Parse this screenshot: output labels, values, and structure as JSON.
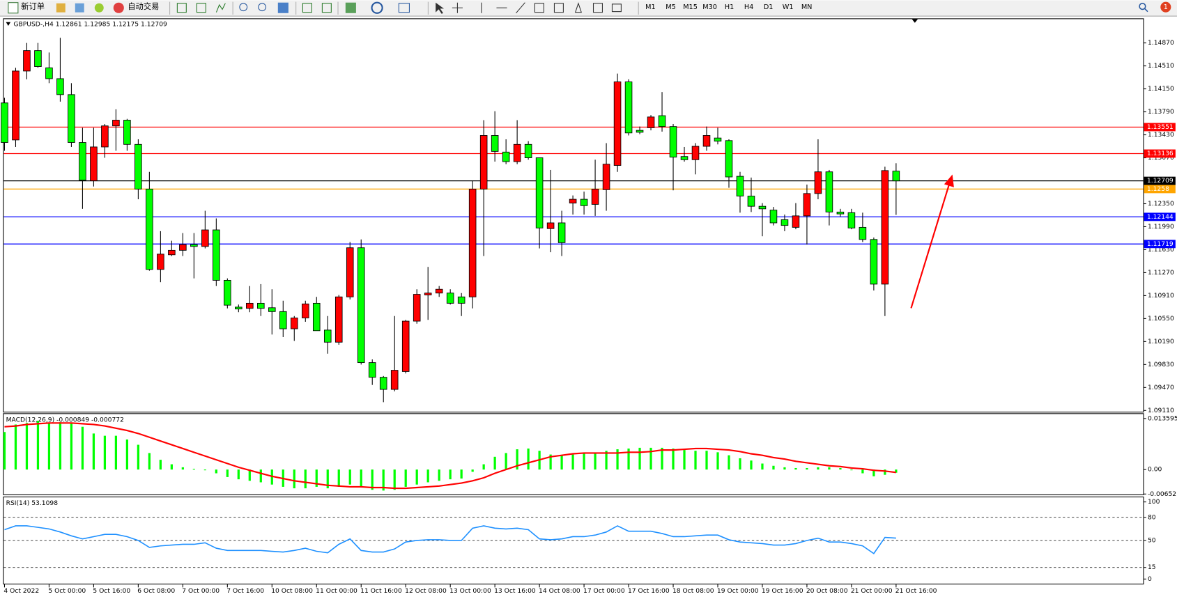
{
  "toolbar": {
    "new_order": "新订单",
    "auto_trade": "自动交易",
    "timeframes": [
      "M1",
      "M5",
      "M15",
      "M30",
      "H1",
      "H4",
      "D1",
      "W1",
      "MN"
    ],
    "badge": "1"
  },
  "chart_data": [
    {
      "type": "candlestick",
      "title": "GBPUSD-,H4  1.12861 1.12985 1.12175 1.12709",
      "categories": [
        "4 Oct 2022",
        null,
        null,
        null,
        "5 Oct 00:00",
        null,
        null,
        null,
        "5 Oct 16:00",
        null,
        null,
        null,
        "6 Oct 08:00",
        null,
        null,
        null,
        "7 Oct 00:00",
        null,
        null,
        null,
        "7 Oct 16:00",
        null,
        null,
        null,
        "10 Oct 08:00",
        null,
        null,
        null,
        "11 Oct 00:00",
        null,
        null,
        null,
        "11 Oct 16:00",
        null,
        null,
        null,
        "12 Oct 08:00",
        null,
        null,
        null,
        "13 Oct 00:00",
        null,
        null,
        null,
        "13 Oct 16:00",
        null,
        null,
        null,
        "14 Oct 08:00",
        null,
        null,
        null,
        "17 Oct 00:00",
        null,
        null,
        null,
        "17 Oct 16:00",
        null,
        null,
        null,
        "18 Oct 08:00",
        null,
        null,
        null,
        "19 Oct 00:00",
        null,
        null,
        null,
        "19 Oct 16:00",
        null,
        null,
        null,
        "20 Oct 08:00",
        null,
        null,
        null,
        "21 Oct 00:00",
        null,
        null,
        null,
        "21 Oct 16:00"
      ],
      "open": [
        1.1393,
        1.1335,
        1.1443,
        1.1475,
        1.1448,
        1.1431,
        1.1406,
        1.1331,
        1.1271,
        1.1324,
        1.1357,
        1.1366,
        1.1328,
        1.1258,
        1.1132,
        1.1155,
        1.1162,
        1.1171,
        1.1168,
        1.1194,
        1.1115,
        1.1073,
        1.1071,
        1.1079,
        1.1072,
        1.1066,
        1.1039,
        1.1056,
        1.1079,
        1.1037,
        1.1018,
        1.1089,
        1.1166,
        1.0986,
        1.0963,
        1.0944,
        1.0972,
        1.1051,
        1.1092,
        1.1095,
        1.1095,
        1.1089,
        1.1089,
        1.1258,
        1.1342,
        1.1316,
        1.1301,
        1.1328,
        1.1307,
        1.1196,
        1.1205,
        1.1236,
        1.1242,
        1.1234,
        1.1257,
        1.1295,
        1.1426,
        1.135,
        1.1354,
        1.1373,
        1.1356,
        1.1309,
        1.1304,
        1.1325,
        1.1338,
        1.1334,
        1.1278,
        1.1247,
        1.1231,
        1.1225,
        1.121,
        1.1198,
        1.1216,
        1.1251,
        1.1285,
        1.1222,
        1.1221,
        1.1198,
        1.1179,
        1.1109,
        1.12861
      ],
      "high": [
        1.1401,
        1.1448,
        1.1487,
        1.1487,
        1.1472,
        1.1495,
        1.1424,
        1.1354,
        1.1354,
        1.136,
        1.1383,
        1.1368,
        1.1336,
        1.1285,
        1.1192,
        1.1177,
        1.1189,
        1.1189,
        1.1224,
        1.1212,
        1.1118,
        1.1077,
        1.1106,
        1.1109,
        1.1101,
        1.1083,
        1.1059,
        1.1083,
        1.1089,
        1.1059,
        1.1092,
        1.1175,
        1.1179,
        1.0991,
        1.0965,
        1.1059,
        1.1053,
        1.1101,
        1.1136,
        1.1106,
        1.1101,
        1.1095,
        1.1271,
        1.1366,
        1.138,
        1.1336,
        1.1366,
        1.1333,
        1.1307,
        1.1288,
        1.1224,
        1.1248,
        1.1254,
        1.1304,
        1.133,
        1.1439,
        1.143,
        1.1356,
        1.1374,
        1.141,
        1.136,
        1.1324,
        1.133,
        1.1356,
        1.1354,
        1.1336,
        1.1285,
        1.1276,
        1.1236,
        1.123,
        1.1218,
        1.1236,
        1.1265,
        1.1336,
        1.1288,
        1.1227,
        1.1227,
        1.1221,
        1.1182,
        1.1293,
        1.12985
      ],
      "low": [
        1.1318,
        1.1324,
        1.143,
        1.1448,
        1.1424,
        1.1395,
        1.1324,
        1.1227,
        1.1262,
        1.1307,
        1.1318,
        1.1318,
        1.1242,
        1.113,
        1.1112,
        1.1153,
        1.1153,
        1.1118,
        1.1165,
        1.1106,
        1.1071,
        1.1065,
        1.1065,
        1.1059,
        1.103,
        1.1026,
        1.102,
        1.105,
        1.1036,
        1.1,
        1.1014,
        1.1085,
        1.0983,
        1.0951,
        1.0924,
        1.0941,
        1.0969,
        1.1047,
        1.1053,
        1.1089,
        1.1077,
        1.1059,
        1.1071,
        1.1153,
        1.1301,
        1.1297,
        1.1297,
        1.1304,
        1.1165,
        1.1159,
        1.1153,
        1.1218,
        1.1218,
        1.1216,
        1.1224,
        1.1285,
        1.1342,
        1.1344,
        1.135,
        1.1348,
        1.1256,
        1.1301,
        1.1281,
        1.1318,
        1.1328,
        1.126,
        1.1221,
        1.1222,
        1.1184,
        1.1201,
        1.1192,
        1.1195,
        1.1171,
        1.1242,
        1.1201,
        1.1215,
        1.1195,
        1.1175,
        1.1099,
        1.1059,
        1.12175
      ],
      "close": [
        1.1331,
        1.1443,
        1.1475,
        1.145,
        1.1431,
        1.1406,
        1.1331,
        1.1272,
        1.1324,
        1.1357,
        1.1366,
        1.1328,
        1.1258,
        1.1132,
        1.1156,
        1.1162,
        1.1171,
        1.1168,
        1.1194,
        1.1115,
        1.1076,
        1.107,
        1.1079,
        1.1071,
        1.1066,
        1.1039,
        1.1056,
        1.1078,
        1.1036,
        1.1018,
        1.1089,
        1.1166,
        1.0986,
        1.0963,
        1.0944,
        1.0974,
        1.1051,
        1.1093,
        1.1095,
        1.1101,
        1.1079,
        1.1079,
        1.1258,
        1.1342,
        1.1317,
        1.1301,
        1.1328,
        1.1307,
        1.1197,
        1.1205,
        1.1174,
        1.1242,
        1.1232,
        1.1258,
        1.1297,
        1.1426,
        1.1346,
        1.1347,
        1.1371,
        1.1356,
        1.1308,
        1.1304,
        1.1325,
        1.1342,
        1.1333,
        1.1277,
        1.1247,
        1.1231,
        1.1227,
        1.1205,
        1.1201,
        1.1216,
        1.1251,
        1.1285,
        1.1222,
        1.1219,
        1.1197,
        1.1179,
        1.1109,
        1.1287,
        1.12709
      ],
      "up_color": "#ff0000",
      "down_color": "#00ff00",
      "ylim": [
        1.0909,
        1.1522
      ],
      "yticks": [
        {
          "value": 1.1487,
          "label": "1.14870"
        },
        {
          "value": 1.1451,
          "label": "1.14510"
        },
        {
          "value": 1.1415,
          "label": "1.14150"
        },
        {
          "value": 1.1379,
          "label": "1.13790"
        },
        {
          "value": 1.1343,
          "label": "1.13430"
        },
        {
          "value": 1.1307,
          "label": "1.13070"
        },
        {
          "value": 1.1235,
          "label": "1.12350"
        },
        {
          "value": 1.1199,
          "label": "1.11990"
        },
        {
          "value": 1.1163,
          "label": "1.11630"
        },
        {
          "value": 1.1127,
          "label": "1.11270"
        },
        {
          "value": 1.1091,
          "label": "1.10910"
        },
        {
          "value": 1.1055,
          "label": "1.10550"
        },
        {
          "value": 1.1019,
          "label": "1.10190"
        },
        {
          "value": 1.0983,
          "label": "1.09830"
        },
        {
          "value": 1.0947,
          "label": "1.09470"
        },
        {
          "value": 1.0911,
          "label": "1.09110"
        }
      ],
      "hlines": [
        {
          "value": 1.13551,
          "color": "#ff0000"
        },
        {
          "value": 1.13136,
          "color": "#ff0000"
        },
        {
          "value": 1.12709,
          "color": "#000000"
        },
        {
          "value": 1.1258,
          "color": "#ffa500"
        },
        {
          "value": 1.12144,
          "color": "#0000ff"
        },
        {
          "value": 1.11719,
          "color": "#0000ff"
        }
      ]
    },
    {
      "type": "macd",
      "title": "MACD(12,26,9) -0.000849 -0.000772",
      "series": [
        {
          "style": "bar",
          "color": "#00ff00",
          "values": [
            0.01,
            0.012,
            0.0124,
            0.013,
            0.0124,
            0.0126,
            0.0124,
            0.0114,
            0.0096,
            0.009,
            0.009,
            0.008,
            0.0066,
            0.0044,
            0.0026,
            0.0014,
            0.0006,
            0.0002,
            -0.0002,
            -0.001,
            -0.002,
            -0.0026,
            -0.003,
            -0.0034,
            -0.004,
            -0.0046,
            -0.005,
            -0.005,
            -0.0046,
            -0.005,
            -0.0046,
            -0.004,
            -0.0046,
            -0.0054,
            -0.0056,
            -0.0054,
            -0.0046,
            -0.004,
            -0.0034,
            -0.003,
            -0.0026,
            -0.0024,
            -0.0006,
            0.0014,
            0.0034,
            0.0044,
            0.0054,
            0.0056,
            0.005,
            0.004,
            0.0038,
            0.004,
            0.0042,
            0.0044,
            0.005,
            0.0054,
            0.0056,
            0.0058,
            0.0058,
            0.0058,
            0.0056,
            0.0052,
            0.005,
            0.005,
            0.0046,
            0.0038,
            0.003,
            0.0024,
            0.0016,
            0.001,
            0.0006,
            0.0004,
            0.0004,
            0.0006,
            0.0006,
            0.0004,
            -0.0002,
            -0.001,
            -0.0018,
            -0.0014,
            -0.000849
          ]
        },
        {
          "style": "line",
          "color": "#ff0000",
          "values": [
            0.0114,
            0.0116,
            0.012,
            0.0122,
            0.0124,
            0.0124,
            0.0124,
            0.0122,
            0.012,
            0.0116,
            0.011,
            0.0104,
            0.0096,
            0.0086,
            0.0076,
            0.0066,
            0.0056,
            0.0046,
            0.0036,
            0.0026,
            0.0016,
            0.0006,
            -0.0002,
            -0.001,
            -0.0018,
            -0.0024,
            -0.003,
            -0.0034,
            -0.0038,
            -0.0042,
            -0.0044,
            -0.0046,
            -0.0046,
            -0.0048,
            -0.0048,
            -0.005,
            -0.005,
            -0.0048,
            -0.0046,
            -0.0044,
            -0.004,
            -0.0036,
            -0.003,
            -0.0022,
            -0.001,
            0.0,
            0.001,
            0.0018,
            0.0026,
            0.0034,
            0.0038,
            0.0042,
            0.0044,
            0.0044,
            0.0044,
            0.0044,
            0.0046,
            0.0046,
            0.0048,
            0.0052,
            0.0052,
            0.0054,
            0.0056,
            0.0056,
            0.0054,
            0.0052,
            0.0048,
            0.0042,
            0.0038,
            0.0032,
            0.0028,
            0.0022,
            0.0018,
            0.0014,
            0.001,
            0.0008,
            0.0004,
            0.0002,
            -0.0002,
            -0.0004,
            -0.000772
          ]
        }
      ],
      "ylim": [
        -0.0066,
        0.0144
      ],
      "yticks": [
        0.013595,
        {
          "value": 0,
          "label": "0.00"
        },
        -0.00652
      ]
    },
    {
      "type": "line",
      "title": "RSI(14) 53.1098",
      "series": [
        {
          "color": "#1e90ff",
          "values": [
            64,
            69,
            69,
            67,
            65,
            61,
            56,
            52,
            55,
            58,
            58,
            55,
            50,
            41,
            43,
            44,
            45,
            45,
            47,
            40,
            37,
            37,
            37,
            37,
            36,
            35,
            37,
            40,
            36,
            34,
            45,
            52,
            37,
            35,
            35,
            39,
            48,
            50,
            51,
            51,
            50,
            50,
            66,
            69,
            66,
            65,
            66,
            64,
            52,
            51,
            52,
            55,
            55,
            57,
            61,
            69,
            62,
            62,
            62,
            59,
            55,
            55,
            56,
            57,
            57,
            51,
            48,
            47,
            46,
            44,
            44,
            46,
            50,
            53,
            48,
            48,
            46,
            43,
            33,
            54,
            53.1098
          ]
        }
      ],
      "ylim": [
        -6,
        105
      ],
      "yticks": [
        100,
        80,
        50,
        15,
        0
      ],
      "levels": [
        80,
        50,
        15
      ]
    }
  ]
}
